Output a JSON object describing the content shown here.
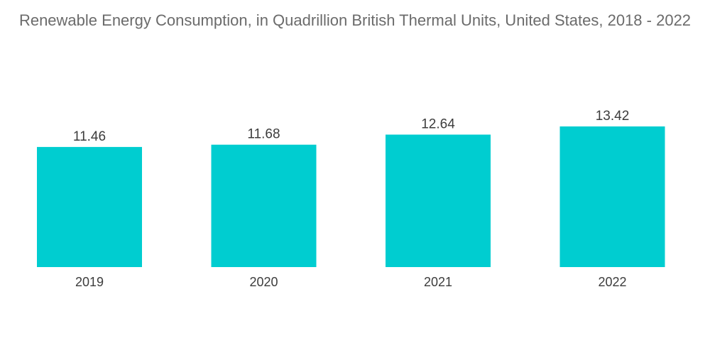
{
  "chart_data": {
    "type": "bar",
    "title": "Renewable Energy Consumption, in Quadrillion British Thermal Units, United States, 2018 - 2022",
    "categories": [
      "2019",
      "2020",
      "2021",
      "2022"
    ],
    "values": [
      11.46,
      11.68,
      12.64,
      13.42
    ],
    "value_labels": [
      "11.46",
      "11.68",
      "12.64",
      "13.42"
    ],
    "xlabel": "",
    "ylabel": "",
    "ylim": [
      0,
      13.42
    ],
    "grid": false,
    "legend": "none",
    "bar_color": "#00cdd0"
  }
}
